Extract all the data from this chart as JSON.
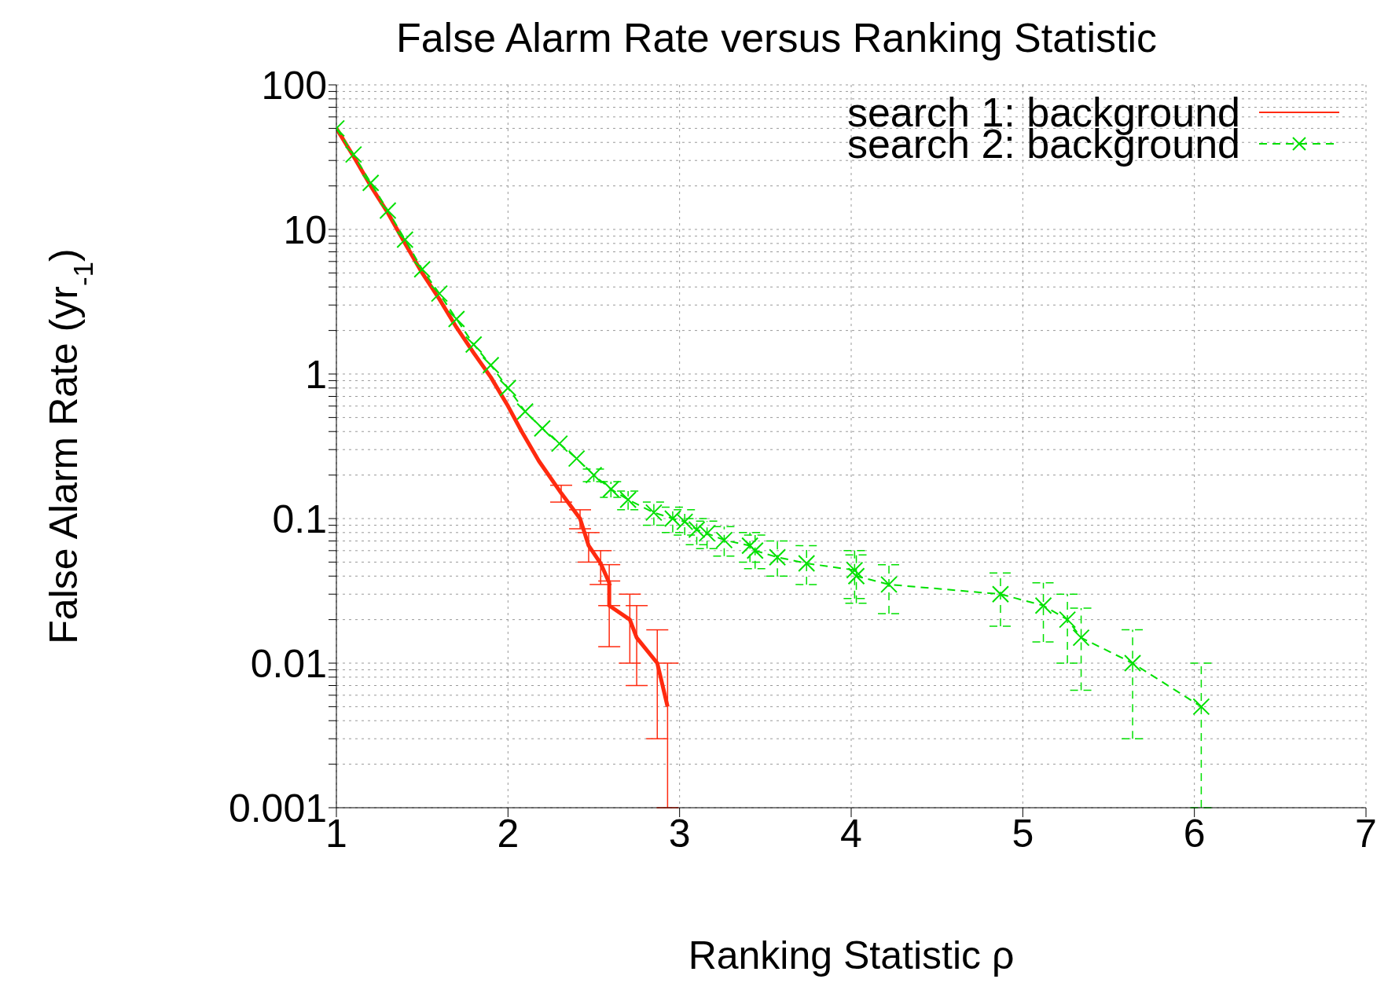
{
  "chart_data": {
    "type": "line",
    "title": "False Alarm Rate versus Ranking Statistic",
    "xlabel": "Ranking Statistic ρ",
    "ylabel": "False Alarm Rate (yr$_{-1}$)",
    "log": "y",
    "grid": true,
    "legend": "top right",
    "xlim": [
      1,
      7
    ],
    "xticks": [
      1,
      2,
      3,
      4,
      5,
      6,
      7
    ],
    "ylim": [
      0.001,
      100
    ],
    "yticks": [
      0.001,
      {
        "value": 0.002,
        "label": null
      },
      {
        "value": 0.003,
        "label": null
      },
      {
        "value": 0.004,
        "label": null
      },
      {
        "value": 0.005,
        "label": null
      },
      {
        "value": 0.006,
        "label": null
      },
      {
        "value": 0.007,
        "label": null
      },
      {
        "value": 0.008,
        "label": null
      },
      {
        "value": 0.009,
        "label": null
      },
      0.01,
      {
        "value": 0.02,
        "label": null
      },
      {
        "value": 0.03,
        "label": null
      },
      {
        "value": 0.04,
        "label": null
      },
      {
        "value": 0.05,
        "label": null
      },
      {
        "value": 0.06,
        "label": null
      },
      {
        "value": 0.07,
        "label": null
      },
      {
        "value": 0.08,
        "label": null
      },
      {
        "value": 0.09,
        "label": null
      },
      0.1,
      {
        "value": 0.2,
        "label": null
      },
      {
        "value": 0.3,
        "label": null
      },
      {
        "value": 0.4,
        "label": null
      },
      {
        "value": 0.5,
        "label": null
      },
      {
        "value": 0.6,
        "label": null
      },
      {
        "value": 0.7,
        "label": null
      },
      {
        "value": 0.8,
        "label": null
      },
      {
        "value": 0.9,
        "label": null
      },
      1,
      {
        "value": 2,
        "label": null
      },
      {
        "value": 3,
        "label": null
      },
      {
        "value": 4,
        "label": null
      },
      {
        "value": 5,
        "label": null
      },
      {
        "value": 6,
        "label": null
      },
      {
        "value": 7,
        "label": null
      },
      {
        "value": 8,
        "label": null
      },
      {
        "value": 9,
        "label": null
      },
      10,
      {
        "value": 20,
        "label": null
      },
      {
        "value": 30,
        "label": null
      },
      {
        "value": 40,
        "label": null
      },
      {
        "value": 50,
        "label": null
      },
      {
        "value": 60,
        "label": null
      },
      {
        "value": 70,
        "label": null
      },
      {
        "value": 80,
        "label": null
      },
      {
        "value": 90,
        "label": null
      },
      100
    ],
    "series": [
      {
        "name": "search 1: background",
        "color": "#ff2a0f",
        "marker": "none",
        "line_style": "solid",
        "x": [
          1.0,
          1.1,
          1.2,
          1.3,
          1.4,
          1.5,
          1.6,
          1.7,
          1.8,
          1.9,
          2.0,
          2.08,
          2.18,
          2.31,
          2.42,
          2.47,
          2.54,
          2.59,
          2.59,
          2.71,
          2.75,
          2.87,
          2.93
        ],
        "values": [
          50,
          32,
          20,
          13,
          8,
          5,
          3.3,
          2.1,
          1.4,
          0.95,
          0.6,
          0.4,
          0.25,
          0.15,
          0.1,
          0.065,
          0.049,
          0.036,
          0.025,
          0.02,
          0.015,
          0.01,
          0.005
        ],
        "errors": [
          null,
          null,
          null,
          null,
          null,
          null,
          null,
          null,
          null,
          null,
          null,
          null,
          null,
          [
            0.13,
            0.17
          ],
          [
            0.085,
            0.115
          ],
          [
            0.05,
            0.08
          ],
          [
            0.035,
            0.06
          ],
          [
            0.025,
            0.048
          ],
          [
            0.013,
            0.037
          ],
          [
            0.01,
            0.03
          ],
          [
            0.007,
            0.025
          ],
          [
            0.003,
            0.017
          ],
          [
            0.001,
            0.01
          ]
        ]
      },
      {
        "name": "search 2: background",
        "color": "#00e000",
        "marker": "cross",
        "line_style": "dashed",
        "x": [
          1.0,
          1.1,
          1.2,
          1.3,
          1.4,
          1.5,
          1.6,
          1.7,
          1.8,
          1.9,
          2.0,
          2.1,
          2.2,
          2.3,
          2.4,
          2.5,
          2.6,
          2.7,
          2.85,
          2.96,
          3.03,
          3.1,
          3.16,
          3.26,
          3.41,
          3.44,
          3.57,
          3.74,
          4.02,
          4.03,
          4.22,
          4.87,
          5.12,
          5.26,
          5.34,
          5.64,
          6.04
        ],
        "values": [
          50,
          33,
          21,
          13.5,
          8.5,
          5.3,
          3.6,
          2.4,
          1.6,
          1.15,
          0.8,
          0.55,
          0.42,
          0.33,
          0.26,
          0.2,
          0.16,
          0.135,
          0.11,
          0.1,
          0.095,
          0.084,
          0.079,
          0.071,
          0.065,
          0.06,
          0.054,
          0.049,
          0.044,
          0.04,
          0.035,
          0.03,
          0.025,
          0.02,
          0.015,
          0.01,
          0.005
        ],
        "errors": [
          null,
          null,
          null,
          null,
          null,
          null,
          null,
          null,
          null,
          null,
          null,
          null,
          null,
          null,
          null,
          [
            0.18,
            0.22
          ],
          [
            0.14,
            0.18
          ],
          [
            0.115,
            0.155
          ],
          [
            0.09,
            0.13
          ],
          [
            0.08,
            0.12
          ],
          [
            0.077,
            0.115
          ],
          [
            0.066,
            0.1
          ],
          [
            0.062,
            0.096
          ],
          [
            0.055,
            0.088
          ],
          [
            0.05,
            0.08
          ],
          [
            0.045,
            0.077
          ],
          [
            0.04,
            0.07
          ],
          [
            0.035,
            0.065
          ],
          [
            0.028,
            0.06
          ],
          [
            0.026,
            0.056
          ],
          [
            0.022,
            0.048
          ],
          [
            0.018,
            0.042
          ],
          [
            0.014,
            0.036
          ],
          [
            0.01,
            0.03
          ],
          [
            0.0065,
            0.024
          ],
          [
            0.003,
            0.017
          ],
          [
            0.001,
            0.01
          ]
        ]
      }
    ]
  }
}
